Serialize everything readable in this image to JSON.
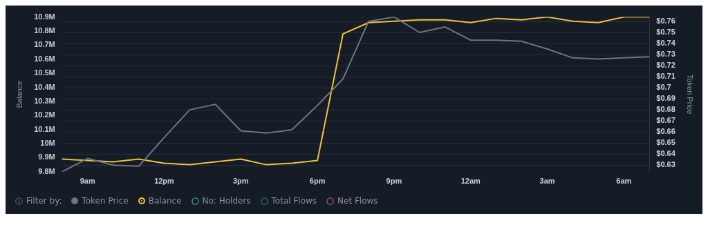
{
  "chart_data": {
    "type": "line",
    "ylabel": "Balance",
    "y2label": "Token Price",
    "legend_title": "Filter by:",
    "categories": [
      null,
      "9am",
      null,
      null,
      "12pm",
      null,
      null,
      "3pm",
      null,
      null,
      "6pm",
      null,
      null,
      "9pm",
      null,
      null,
      "12am",
      null,
      null,
      "3am",
      null,
      null,
      "6am",
      null
    ],
    "ylim": [
      9.8,
      10.9
    ],
    "yticks": [
      {
        "value": 9.8,
        "label": "9.8M"
      },
      {
        "value": 9.9,
        "label": "9.9M"
      },
      {
        "value": 10,
        "label": "10M"
      },
      {
        "value": 10.1,
        "label": "10.1M"
      },
      {
        "value": 10.2,
        "label": "10.2M"
      },
      {
        "value": 10.3,
        "label": "10.3M"
      },
      {
        "value": 10.4,
        "label": "10.4M"
      },
      {
        "value": 10.5,
        "label": "10.5M"
      },
      {
        "value": 10.6,
        "label": "10.6M"
      },
      {
        "value": 10.7,
        "label": "10.7M"
      },
      {
        "value": 10.8,
        "label": "10.8M"
      },
      {
        "value": 10.9,
        "label": "10.9M"
      }
    ],
    "y2lim": [
      0.624,
      0.764
    ],
    "y2ticks": [
      {
        "value": 0.63,
        "label": "$0.63"
      },
      {
        "value": 0.64,
        "label": "$0.64"
      },
      {
        "value": 0.65,
        "label": "$0.65"
      },
      {
        "value": 0.66,
        "label": "$0.66"
      },
      {
        "value": 0.67,
        "label": "$0.67"
      },
      {
        "value": 0.68,
        "label": "$0.68"
      },
      {
        "value": 0.69,
        "label": "$0.69"
      },
      {
        "value": 0.7,
        "label": "$0.7"
      },
      {
        "value": 0.71,
        "label": "$0.71"
      },
      {
        "value": 0.72,
        "label": "$0.72"
      },
      {
        "value": 0.73,
        "label": "$0.73"
      },
      {
        "value": 0.74,
        "label": "$0.74"
      },
      {
        "value": 0.75,
        "label": "$0.75"
      },
      {
        "value": 0.76,
        "label": "$0.76"
      }
    ],
    "series": [
      {
        "name": "Token Price",
        "color": "#6b7682",
        "axis": "y2",
        "values": [
          0.624,
          0.636,
          0.63,
          0.629,
          0.655,
          0.68,
          0.685,
          0.661,
          0.659,
          0.662,
          0.684,
          0.708,
          0.76,
          0.764,
          0.75,
          0.755,
          0.743,
          0.743,
          0.742,
          0.735,
          0.727,
          0.726,
          0.727,
          0.728
        ]
      },
      {
        "name": "Balance",
        "color": "#f0c23a",
        "values": [
          9.89,
          9.88,
          9.87,
          9.89,
          9.86,
          9.85,
          9.87,
          9.89,
          9.85,
          9.86,
          9.88,
          10.78,
          10.86,
          10.87,
          10.88,
          10.88,
          10.86,
          10.89,
          10.88,
          10.9,
          10.87,
          10.86,
          10.9,
          10.9
        ]
      }
    ],
    "annotations": [
      "No: Holders",
      "Total Flows",
      "Net Flows"
    ],
    "grid": "y2",
    "legend": "bottom left",
    "marker": "none",
    "line_style": "solid"
  }
}
